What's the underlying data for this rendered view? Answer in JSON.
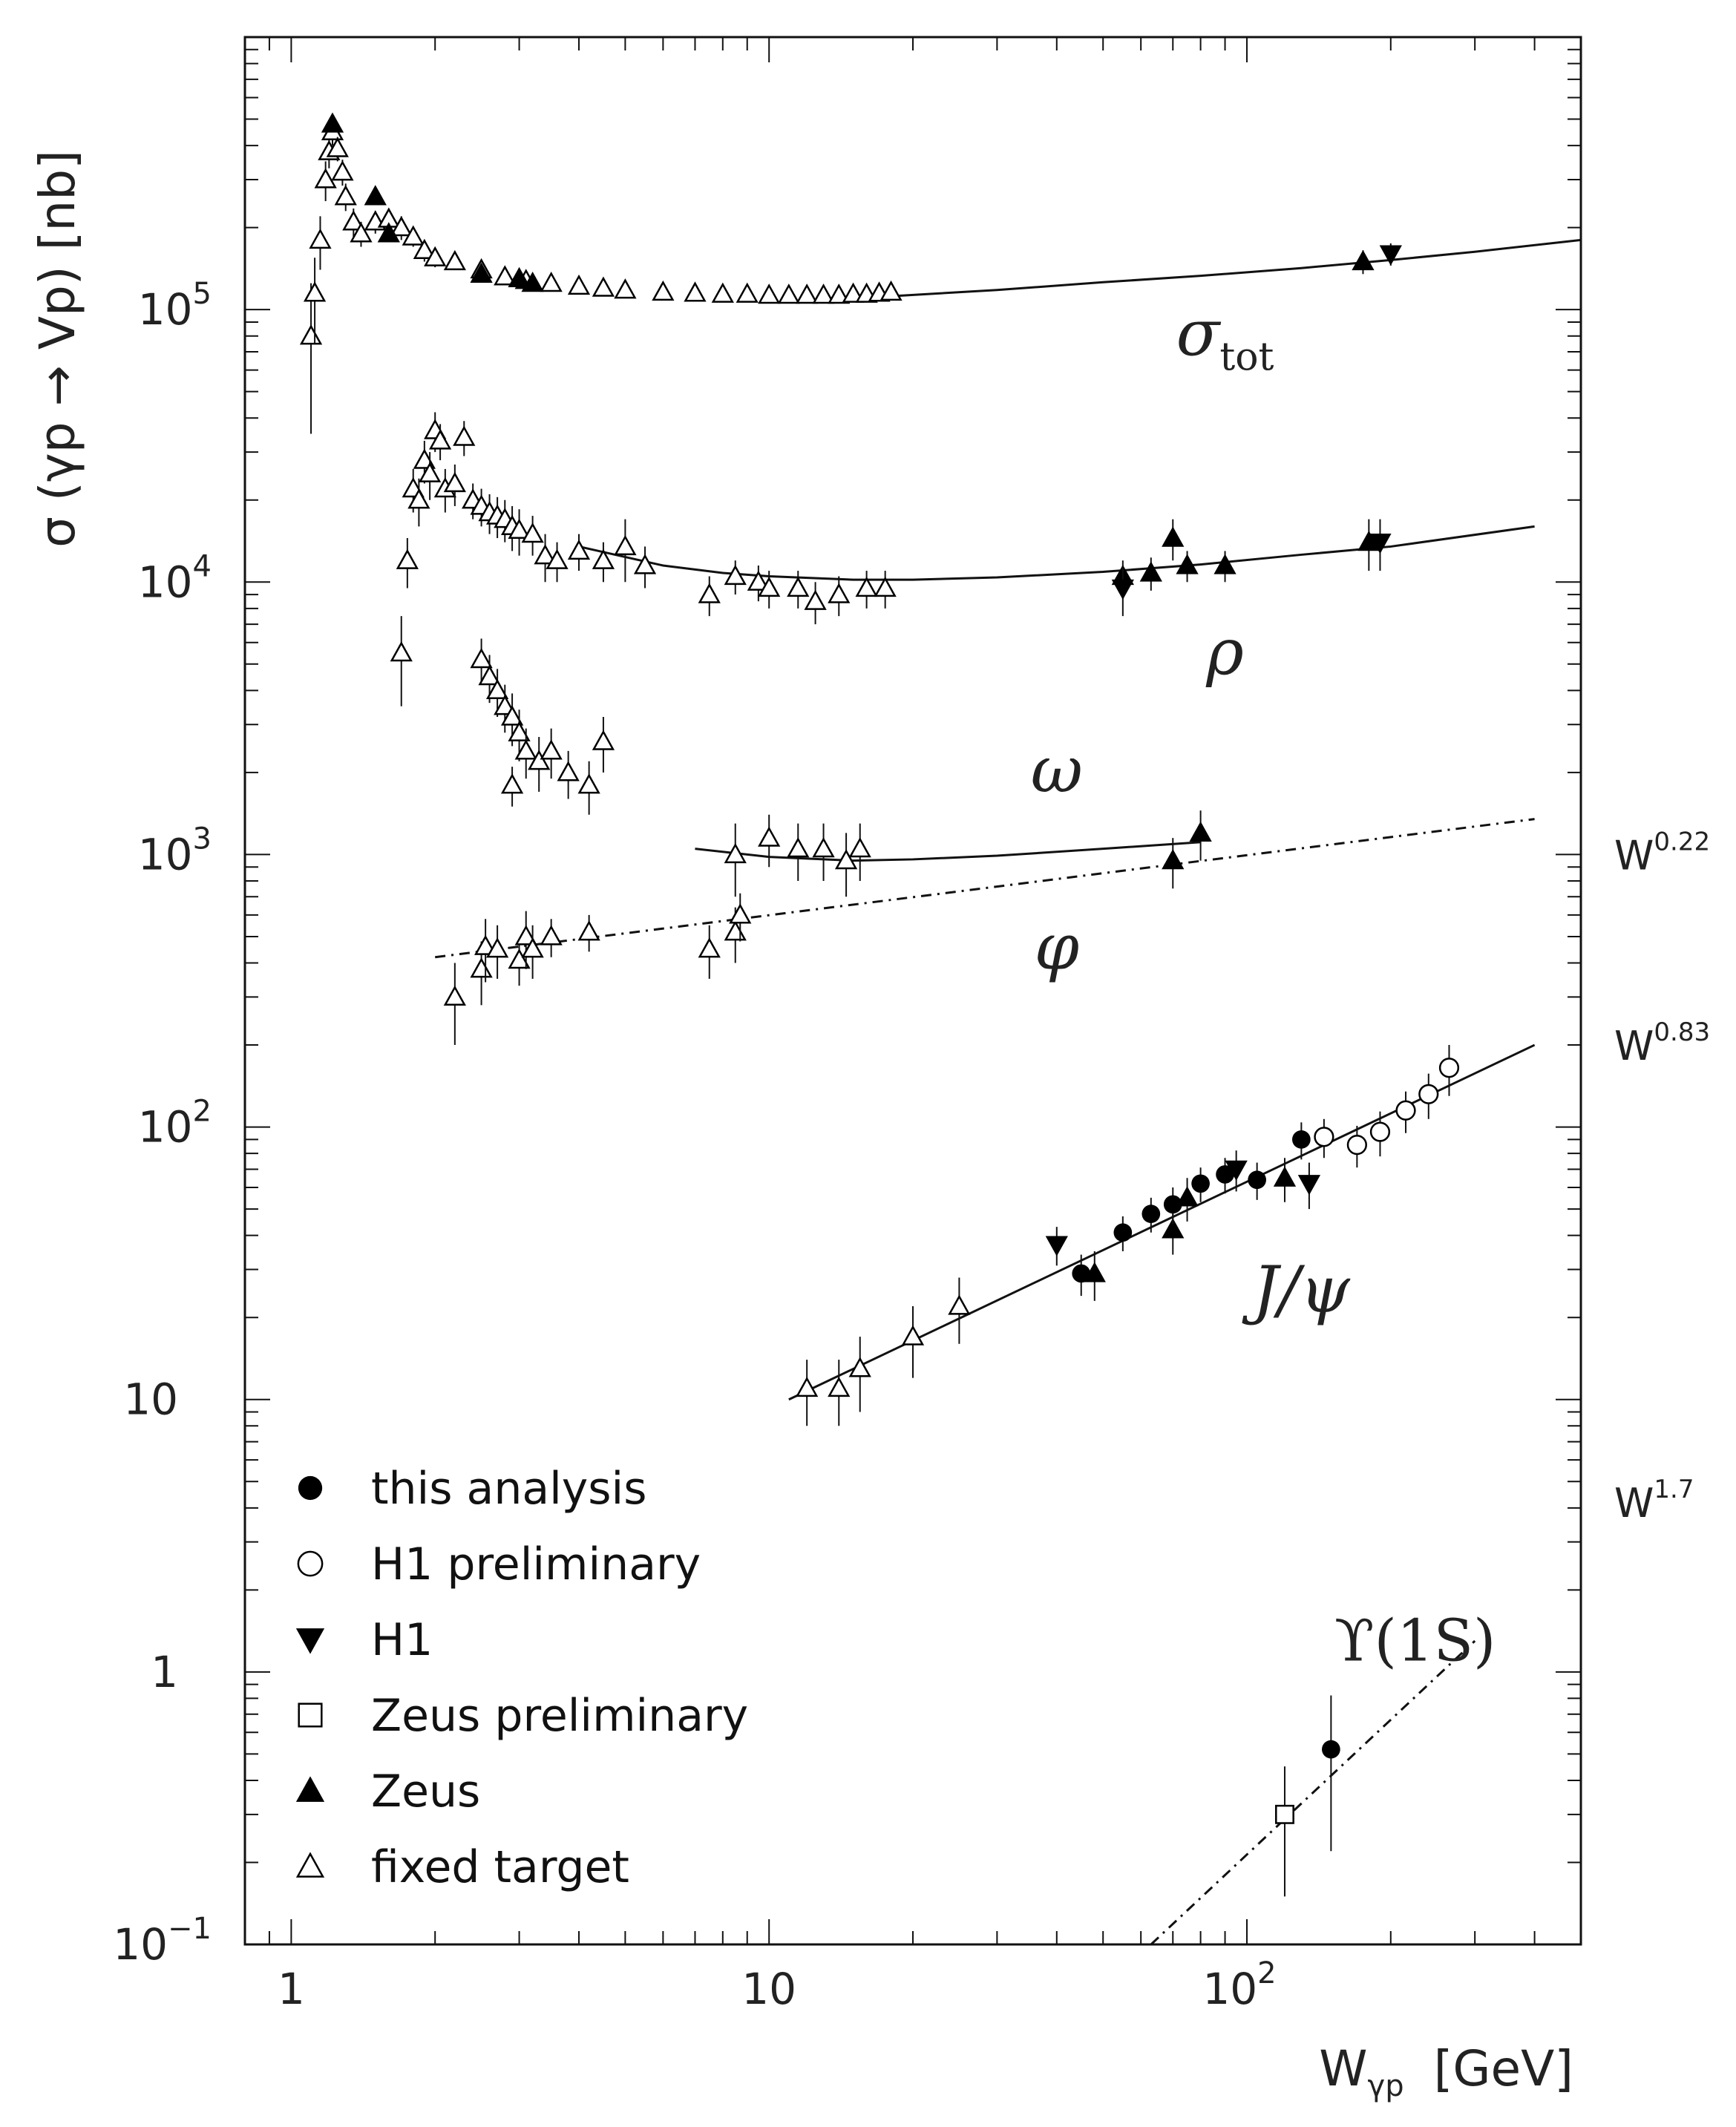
{
  "chart_data": {
    "type": "scatter",
    "x_scale": "log",
    "y_scale": "log",
    "xlim": [
      0.8,
      500
    ],
    "ylim": [
      0.1,
      1000000
    ],
    "ylabel": "σ (γp → Vp)  [nb]",
    "xlabel": {
      "main": "W",
      "sub": "γp",
      "unit": "[GeV]"
    },
    "x_ticks": [
      {
        "value": 1,
        "label": "1"
      },
      {
        "value": 10,
        "label": "10"
      },
      {
        "value": 100,
        "label": "10",
        "sup": "2"
      }
    ],
    "y_ticks": [
      {
        "value": 0.1,
        "label": "10",
        "sup": "−1"
      },
      {
        "value": 1,
        "label": "1"
      },
      {
        "value": 10,
        "label": "10"
      },
      {
        "value": 100,
        "label": "10",
        "sup": "2"
      },
      {
        "value": 1000,
        "label": "10",
        "sup": "3"
      },
      {
        "value": 10000,
        "label": "10",
        "sup": "4"
      },
      {
        "value": 100000,
        "label": "10",
        "sup": "5"
      }
    ],
    "curve_labels": [
      {
        "id": "tot",
        "main": "σ",
        "sub": "tot",
        "x": 90,
        "y": 68000
      },
      {
        "id": "rho",
        "main": "ρ",
        "x": 90,
        "y": 4600
      },
      {
        "id": "omega",
        "main": "ω",
        "x": 40,
        "y": 1700
      },
      {
        "id": "phi",
        "main": "φ",
        "x": 40,
        "y": 380
      },
      {
        "id": "jpsi",
        "main": "J/ψ",
        "x": 130,
        "y": 21
      },
      {
        "id": "upsilon",
        "main": "ϒ(1S)",
        "x": 225,
        "y": 1.1
      }
    ],
    "slope_labels": [
      {
        "base": "W",
        "exp": "0.22",
        "y": 1000
      },
      {
        "base": "W",
        "exp": "0.83",
        "y": 200
      },
      {
        "base": "W",
        "exp": "1.7",
        "y": 4.2
      }
    ],
    "legend": [
      {
        "marker": "filled-circle",
        "label": "this analysis"
      },
      {
        "marker": "open-circle",
        "label": "H1 preliminary"
      },
      {
        "marker": "filled-down-triangle",
        "label": "H1"
      },
      {
        "marker": "open-square",
        "label": "Zeus preliminary"
      },
      {
        "marker": "filled-triangle",
        "label": "Zeus"
      },
      {
        "marker": "open-triangle",
        "label": "fixed target"
      }
    ],
    "curves": [
      {
        "name": "sigma_tot fit",
        "style": "solid",
        "x": [
          18,
          30,
          50,
          80,
          130,
          200,
          300,
          500
        ],
        "y": [
          112000,
          118000,
          126000,
          133000,
          142000,
          152000,
          163000,
          180000
        ]
      },
      {
        "name": "rho fit",
        "style": "solid",
        "x": [
          4,
          6,
          8,
          10,
          15,
          20,
          30,
          50,
          80,
          130,
          200,
          400
        ],
        "y": [
          13500,
          11500,
          10800,
          10500,
          10200,
          10200,
          10400,
          10900,
          11600,
          12600,
          13500,
          16000
        ]
      },
      {
        "name": "omega fit",
        "style": "solid",
        "x": [
          7,
          10,
          15,
          20,
          30,
          50,
          80
        ],
        "y": [
          1050,
          980,
          950,
          960,
          990,
          1050,
          1110
        ]
      },
      {
        "name": "phi W^0.22",
        "style": "dashdot",
        "x": [
          2,
          400
        ],
        "y": [
          420,
          1350
        ]
      },
      {
        "name": "J/psi W^0.83",
        "style": "solid",
        "x": [
          11,
          400
        ],
        "y": [
          10,
          200
        ]
      },
      {
        "name": "Upsilon W^1.7",
        "style": "dashdot",
        "x": [
          63,
          300
        ],
        "y": [
          0.1,
          1.3
        ]
      }
    ],
    "series": [
      {
        "name": "fixed target",
        "marker": "open-triangle",
        "points": [
          [
            1.1,
            80000,
            45000
          ],
          [
            1.12,
            115000,
            40000
          ],
          [
            1.15,
            180000,
            40000
          ],
          [
            1.18,
            300000,
            50000
          ],
          [
            1.2,
            380000,
            50000
          ],
          [
            1.22,
            450000,
            50000
          ],
          [
            1.25,
            390000,
            40000
          ],
          [
            1.28,
            320000,
            35000
          ],
          [
            1.3,
            260000,
            30000
          ],
          [
            1.35,
            210000,
            25000
          ],
          [
            1.4,
            190000,
            20000
          ],
          [
            1.5,
            210000,
            20000
          ],
          [
            1.6,
            215000,
            20000
          ],
          [
            1.7,
            200000,
            20000
          ],
          [
            1.8,
            185000,
            15000
          ],
          [
            1.9,
            165000,
            15000
          ],
          [
            2.0,
            155000,
            12000
          ],
          [
            2.2,
            150000,
            10000
          ],
          [
            2.5,
            140000,
            10000
          ],
          [
            2.8,
            132000,
            8000
          ],
          [
            3.1,
            128000,
            8000
          ],
          [
            3.5,
            125000,
            7000
          ],
          [
            4.0,
            122000,
            7000
          ],
          [
            4.5,
            120000,
            6000
          ],
          [
            5.0,
            118000,
            6000
          ],
          [
            6.0,
            116000,
            5000
          ],
          [
            7.0,
            115000,
            5000
          ],
          [
            8.0,
            114000,
            4000
          ],
          [
            9.0,
            114000,
            4000
          ],
          [
            10.0,
            113000,
            4000
          ],
          [
            11.0,
            113000,
            4000
          ],
          [
            12.0,
            113000,
            4000
          ],
          [
            13.0,
            113000,
            4000
          ],
          [
            14.0,
            113000,
            4000
          ],
          [
            15.0,
            114000,
            4000
          ],
          [
            16.0,
            114000,
            4000
          ],
          [
            17.0,
            115000,
            4000
          ],
          [
            18.0,
            116000,
            4000
          ],
          [
            1.7,
            5500,
            2000
          ],
          [
            1.75,
            12000,
            2500
          ],
          [
            1.8,
            22000,
            4000
          ],
          [
            1.85,
            20000,
            4000
          ],
          [
            1.9,
            28000,
            5000
          ],
          [
            1.95,
            25000,
            5000
          ],
          [
            2.0,
            36000,
            6000
          ],
          [
            2.05,
            33000,
            5000
          ],
          [
            2.1,
            22000,
            4000
          ],
          [
            2.2,
            23000,
            4000
          ],
          [
            2.3,
            34000,
            5000
          ],
          [
            2.4,
            20000,
            3000
          ],
          [
            2.5,
            19000,
            3000
          ],
          [
            2.6,
            18000,
            3000
          ],
          [
            2.7,
            17500,
            3000
          ],
          [
            2.8,
            17000,
            3000
          ],
          [
            2.9,
            16000,
            3000
          ],
          [
            3.0,
            15500,
            3000
          ],
          [
            3.2,
            15000,
            2500
          ],
          [
            3.4,
            12500,
            2500
          ],
          [
            3.6,
            12000,
            2000
          ],
          [
            4.0,
            13000,
            2000
          ],
          [
            4.5,
            12000,
            2000
          ],
          [
            5.0,
            13500,
            3500
          ],
          [
            5.5,
            11500,
            2000
          ],
          [
            7.5,
            9000,
            1500
          ],
          [
            8.5,
            10500,
            1500
          ],
          [
            9.5,
            10000,
            1500
          ],
          [
            10.0,
            9500,
            1500
          ],
          [
            11.5,
            9500,
            1500
          ],
          [
            12.5,
            8500,
            1500
          ],
          [
            14.0,
            9000,
            1500
          ],
          [
            16.0,
            9500,
            1500
          ],
          [
            17.5,
            9500,
            1500
          ],
          [
            2.5,
            5200,
            1000
          ],
          [
            2.6,
            4500,
            900
          ],
          [
            2.7,
            4000,
            800
          ],
          [
            2.8,
            3500,
            700
          ],
          [
            2.9,
            3200,
            700
          ],
          [
            3.0,
            2800,
            600
          ],
          [
            3.1,
            2400,
            500
          ],
          [
            3.3,
            2200,
            500
          ],
          [
            3.5,
            2400,
            500
          ],
          [
            3.8,
            2000,
            400
          ],
          [
            4.2,
            1800,
            400
          ],
          [
            4.5,
            2600,
            600
          ],
          [
            2.9,
            1800,
            300
          ],
          [
            8.5,
            1000,
            300
          ],
          [
            10.0,
            1150,
            250
          ],
          [
            11.5,
            1050,
            250
          ],
          [
            13.0,
            1050,
            250
          ],
          [
            14.5,
            950,
            250
          ],
          [
            15.5,
            1050,
            250
          ],
          [
            2.2,
            300,
            100
          ],
          [
            2.5,
            380,
            100
          ],
          [
            2.55,
            460,
            120
          ],
          [
            2.7,
            450,
            100
          ],
          [
            3.0,
            410,
            80
          ],
          [
            3.1,
            500,
            120
          ],
          [
            3.2,
            450,
            100
          ],
          [
            3.5,
            500,
            80
          ],
          [
            4.2,
            520,
            80
          ],
          [
            7.5,
            450,
            100
          ],
          [
            8.5,
            520,
            120
          ],
          [
            8.7,
            600,
            120
          ],
          [
            12,
            11,
            3
          ],
          [
            14,
            11,
            3
          ],
          [
            15.5,
            13,
            4
          ],
          [
            20,
            17,
            5
          ],
          [
            25,
            22,
            6
          ]
        ]
      },
      {
        "name": "Zeus",
        "marker": "filled-triangle",
        "points": [
          [
            1.22,
            480000,
            0
          ],
          [
            1.5,
            260000,
            0
          ],
          [
            1.6,
            190000,
            0
          ],
          [
            2.5,
            135000,
            0
          ],
          [
            3.0,
            130000,
            0
          ],
          [
            3.2,
            125000,
            0
          ],
          [
            175,
            150000,
            15000
          ],
          [
            55,
            10500,
            1500
          ],
          [
            63,
            10800,
            1500
          ],
          [
            70,
            14500,
            2500
          ],
          [
            75,
            11500,
            1500
          ],
          [
            90,
            11500,
            1500
          ],
          [
            180,
            14000,
            3000
          ],
          [
            70,
            950,
            200
          ],
          [
            80,
            1200,
            250
          ],
          [
            48,
            29,
            6
          ],
          [
            70,
            42,
            8
          ],
          [
            75,
            55,
            10
          ],
          [
            120,
            65,
            12
          ]
        ]
      },
      {
        "name": "H1",
        "marker": "filled-down-triangle",
        "points": [
          [
            200,
            160000,
            15000
          ],
          [
            55,
            9500,
            2000
          ],
          [
            190,
            14000,
            3000
          ],
          [
            40,
            37,
            6
          ],
          [
            95,
            70,
            12
          ],
          [
            135,
            62,
            12
          ]
        ]
      },
      {
        "name": "this analysis",
        "marker": "filled-circle",
        "points": [
          [
            45,
            29,
            5
          ],
          [
            55,
            41,
            6
          ],
          [
            63,
            48,
            7
          ],
          [
            70,
            52,
            8
          ],
          [
            80,
            62,
            9
          ],
          [
            90,
            67,
            10
          ],
          [
            105,
            64,
            10
          ],
          [
            130,
            90,
            14
          ],
          [
            150,
            0.52,
            0.3
          ]
        ]
      },
      {
        "name": "H1 preliminary",
        "marker": "open-circle",
        "points": [
          [
            145,
            92,
            15
          ],
          [
            170,
            86,
            15
          ],
          [
            190,
            96,
            18
          ],
          [
            215,
            115,
            20
          ],
          [
            240,
            132,
            25
          ],
          [
            265,
            165,
            35
          ]
        ]
      },
      {
        "name": "Zeus preliminary",
        "marker": "open-square",
        "points": [
          [
            120,
            0.3,
            0.15
          ]
        ]
      }
    ]
  }
}
